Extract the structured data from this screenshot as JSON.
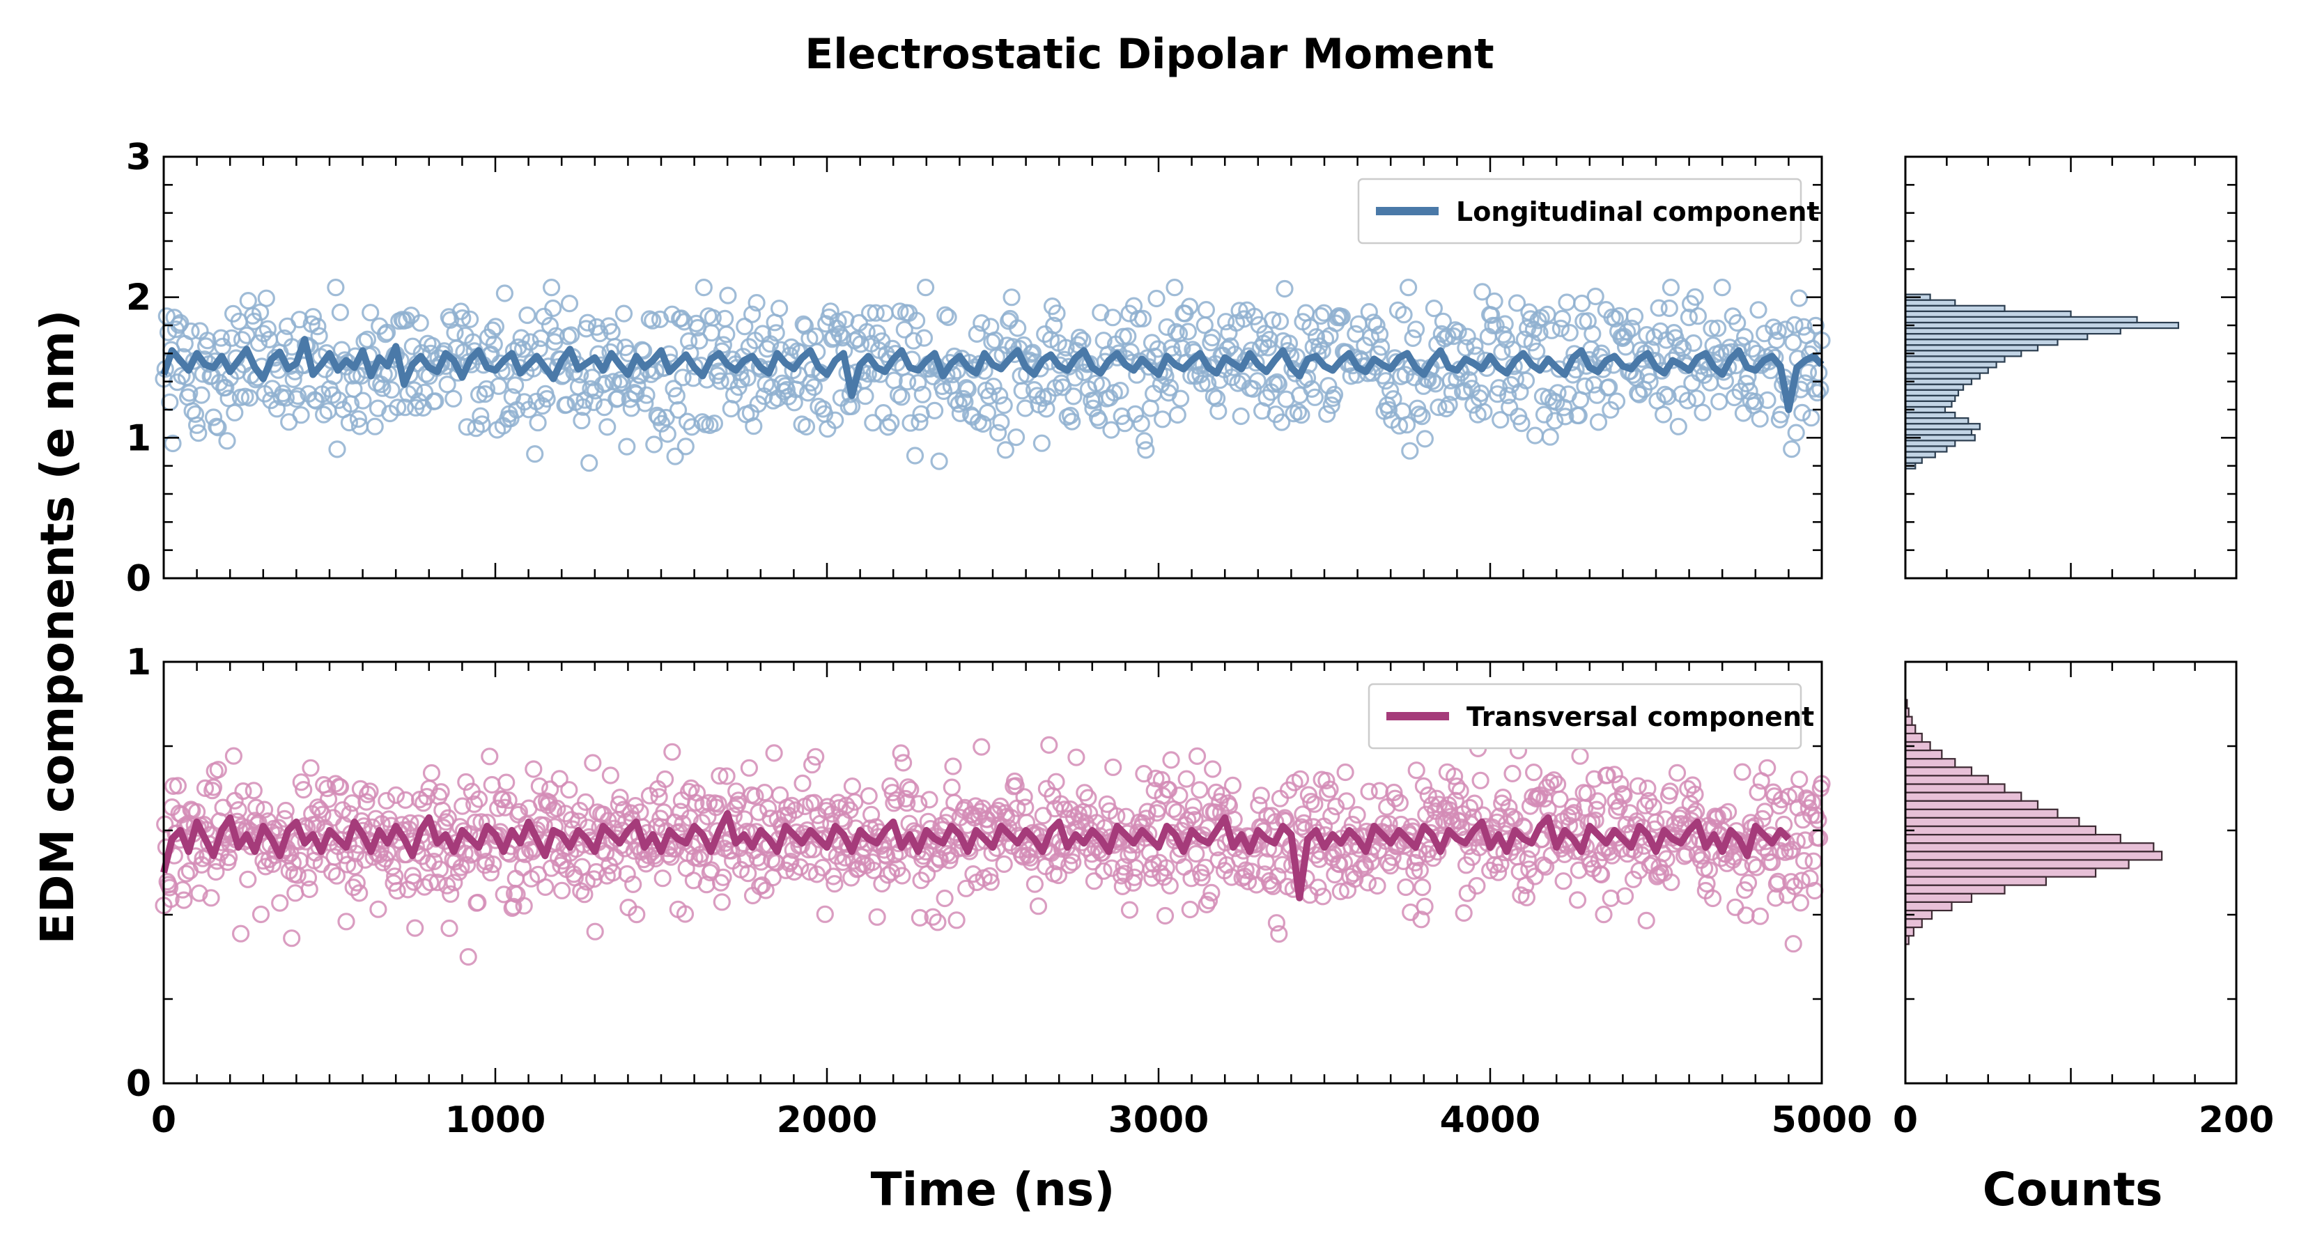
{
  "chart_data": {
    "type": "scatter",
    "title": "Electrostatic Dipolar Moment",
    "ylabel": "EDM components (e nm)",
    "xlabel": "Time (ns)",
    "hist_xlabel": "Counts",
    "xlim": [
      0,
      5000
    ],
    "xticks": [
      "0",
      "1000",
      "2000",
      "3000",
      "4000",
      "5000"
    ],
    "hist_xlim": [
      0,
      200
    ],
    "hist_xticks": [
      "0",
      "200"
    ],
    "grid": false,
    "panels": [
      {
        "id": "longitudinal",
        "legend": "Longitudinal component",
        "legend_position": "top-right",
        "color": "#4a79a8",
        "scatter_color": "#8fb0d0",
        "hist_color": "#2c3e50",
        "ylim": [
          0,
          3
        ],
        "yticks": [
          "0",
          "1",
          "2",
          "3"
        ],
        "series": [
          {
            "name": "Longitudinal component",
            "kind": "running-mean",
            "x_step": 25,
            "values": [
              1.45,
              1.62,
              1.55,
              1.48,
              1.6,
              1.52,
              1.5,
              1.58,
              1.47,
              1.55,
              1.63,
              1.5,
              1.42,
              1.56,
              1.61,
              1.49,
              1.53,
              1.7,
              1.45,
              1.52,
              1.6,
              1.48,
              1.55,
              1.5,
              1.62,
              1.44,
              1.57,
              1.51,
              1.65,
              1.38,
              1.52,
              1.58,
              1.5,
              1.47,
              1.6,
              1.55,
              1.43,
              1.56,
              1.62,
              1.5,
              1.48,
              1.55,
              1.6,
              1.46,
              1.52,
              1.58,
              1.5,
              1.42,
              1.55,
              1.63,
              1.49,
              1.53,
              1.57,
              1.48,
              1.6,
              1.52,
              1.45,
              1.58,
              1.5,
              1.55,
              1.62,
              1.47,
              1.53,
              1.59,
              1.5,
              1.44,
              1.56,
              1.6,
              1.52,
              1.48,
              1.55,
              1.58,
              1.5,
              1.46,
              1.6,
              1.53,
              1.49,
              1.57,
              1.62,
              1.5,
              1.45,
              1.55,
              1.6,
              1.3,
              1.52,
              1.58,
              1.5,
              1.47,
              1.56,
              1.62,
              1.5,
              1.48,
              1.55,
              1.6,
              1.44,
              1.53,
              1.58,
              1.5,
              1.46,
              1.6,
              1.52,
              1.49,
              1.56,
              1.62,
              1.5,
              1.45,
              1.55,
              1.59,
              1.51,
              1.48,
              1.57,
              1.62,
              1.5,
              1.46,
              1.55,
              1.6,
              1.52,
              1.48,
              1.56,
              1.5,
              1.45,
              1.58,
              1.52,
              1.49,
              1.55,
              1.6,
              1.5,
              1.46,
              1.57,
              1.53,
              1.49,
              1.6,
              1.52,
              1.47,
              1.55,
              1.62,
              1.5,
              1.44,
              1.56,
              1.58,
              1.51,
              1.48,
              1.55,
              1.6,
              1.5,
              1.47,
              1.56,
              1.52,
              1.49,
              1.57,
              1.6,
              1.5,
              1.45,
              1.55,
              1.62,
              1.5,
              1.48,
              1.56,
              1.53,
              1.49,
              1.58,
              1.5,
              1.46,
              1.55,
              1.6,
              1.52,
              1.48,
              1.56,
              1.5,
              1.45,
              1.57,
              1.62,
              1.5,
              1.47,
              1.55,
              1.58,
              1.51,
              1.49,
              1.56,
              1.6,
              1.5,
              1.46,
              1.55,
              1.52,
              1.48,
              1.57,
              1.6,
              1.5,
              1.45,
              1.56,
              1.62,
              1.5,
              1.48,
              1.55,
              1.58,
              1.51,
              1.2,
              1.5,
              1.55,
              1.58,
              1.52
            ]
          },
          {
            "name": "raw samples",
            "kind": "points",
            "n": 1100,
            "center": 1.5,
            "spread": 0.35,
            "range": [
              0.82,
              2.07
            ]
          }
        ],
        "histogram": {
          "bins_y": [
            0.8,
            0.84,
            0.88,
            0.92,
            0.96,
            1.0,
            1.04,
            1.08,
            1.12,
            1.16,
            1.2,
            1.24,
            1.28,
            1.32,
            1.36,
            1.4,
            1.44,
            1.48,
            1.52,
            1.56,
            1.6,
            1.64,
            1.68,
            1.72,
            1.76,
            1.8,
            1.84,
            1.88,
            1.92,
            1.96,
            2.0
          ],
          "counts": [
            6,
            10,
            18,
            25,
            30,
            42,
            40,
            45,
            38,
            30,
            24,
            28,
            30,
            32,
            35,
            40,
            45,
            50,
            55,
            60,
            70,
            80,
            92,
            110,
            130,
            165,
            140,
            100,
            60,
            30,
            15
          ]
        }
      },
      {
        "id": "transversal",
        "legend": "Transversal component",
        "legend_position": "top-right",
        "color": "#a53b7a",
        "scatter_color": "#d48cb6",
        "hist_color": "#3d2a33",
        "ylim": [
          0,
          1
        ],
        "yticks": [
          "0",
          "1"
        ],
        "series": [
          {
            "name": "Transversal component",
            "kind": "running-mean",
            "x_step": 25,
            "values": [
              0.5,
              0.58,
              0.6,
              0.55,
              0.62,
              0.58,
              0.54,
              0.6,
              0.63,
              0.56,
              0.59,
              0.55,
              0.61,
              0.58,
              0.54,
              0.6,
              0.62,
              0.57,
              0.59,
              0.55,
              0.6,
              0.58,
              0.56,
              0.62,
              0.59,
              0.55,
              0.6,
              0.57,
              0.61,
              0.58,
              0.54,
              0.6,
              0.63,
              0.57,
              0.59,
              0.55,
              0.6,
              0.58,
              0.56,
              0.61,
              0.59,
              0.55,
              0.6,
              0.57,
              0.62,
              0.58,
              0.54,
              0.6,
              0.59,
              0.56,
              0.6,
              0.58,
              0.55,
              0.61,
              0.59,
              0.57,
              0.6,
              0.62,
              0.56,
              0.59,
              0.55,
              0.6,
              0.58,
              0.57,
              0.61,
              0.59,
              0.55,
              0.6,
              0.64,
              0.57,
              0.59,
              0.56,
              0.6,
              0.58,
              0.55,
              0.61,
              0.59,
              0.57,
              0.6,
              0.58,
              0.56,
              0.61,
              0.59,
              0.55,
              0.6,
              0.58,
              0.57,
              0.6,
              0.62,
              0.56,
              0.59,
              0.55,
              0.6,
              0.58,
              0.57,
              0.61,
              0.59,
              0.55,
              0.6,
              0.58,
              0.56,
              0.61,
              0.59,
              0.57,
              0.6,
              0.58,
              0.55,
              0.6,
              0.62,
              0.56,
              0.59,
              0.57,
              0.6,
              0.58,
              0.55,
              0.61,
              0.59,
              0.57,
              0.6,
              0.58,
              0.56,
              0.61,
              0.59,
              0.55,
              0.6,
              0.58,
              0.57,
              0.6,
              0.63,
              0.56,
              0.59,
              0.55,
              0.6,
              0.58,
              0.57,
              0.61,
              0.59,
              0.44,
              0.58,
              0.6,
              0.56,
              0.59,
              0.57,
              0.6,
              0.58,
              0.55,
              0.61,
              0.59,
              0.57,
              0.6,
              0.58,
              0.56,
              0.61,
              0.59,
              0.55,
              0.6,
              0.58,
              0.57,
              0.6,
              0.62,
              0.56,
              0.59,
              0.55,
              0.6,
              0.58,
              0.57,
              0.61,
              0.63,
              0.56,
              0.6,
              0.58,
              0.55,
              0.61,
              0.59,
              0.57,
              0.6,
              0.58,
              0.56,
              0.61,
              0.59,
              0.55,
              0.6,
              0.58,
              0.57,
              0.6,
              0.62,
              0.56,
              0.59,
              0.55,
              0.6,
              0.58,
              0.54,
              0.61,
              0.59,
              0.57,
              0.6,
              0.58
            ]
          },
          {
            "name": "raw samples",
            "kind": "points",
            "n": 1400,
            "center": 0.58,
            "spread": 0.1,
            "range": [
              0.3,
              0.92
            ]
          }
        ],
        "histogram": {
          "bins_y": [
            0.34,
            0.36,
            0.38,
            0.4,
            0.42,
            0.44,
            0.46,
            0.48,
            0.5,
            0.52,
            0.54,
            0.56,
            0.58,
            0.6,
            0.62,
            0.64,
            0.66,
            0.68,
            0.7,
            0.72,
            0.74,
            0.76,
            0.78,
            0.8,
            0.82,
            0.84,
            0.86,
            0.88,
            0.9
          ],
          "counts": [
            2,
            5,
            10,
            16,
            28,
            40,
            60,
            85,
            115,
            135,
            155,
            150,
            130,
            115,
            105,
            92,
            80,
            70,
            60,
            50,
            40,
            30,
            22,
            15,
            10,
            6,
            4,
            2,
            1
          ]
        }
      }
    ]
  }
}
